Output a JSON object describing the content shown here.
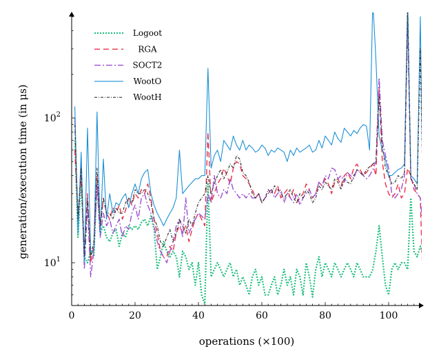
{
  "chart_data": {
    "type": "line",
    "xlabel": "operations (×100)",
    "ylabel": "generation/execution time (in μs)",
    "xlim": [
      0,
      111
    ],
    "ylim": [
      5,
      600
    ],
    "yscale": "log",
    "x_ticks": [
      {
        "value": 0,
        "label": "0"
      },
      {
        "value": 20,
        "label": "20"
      },
      {
        "value": 40,
        "label": "40"
      },
      {
        "value": 60,
        "label": "60"
      },
      {
        "value": 80,
        "label": "80"
      },
      {
        "value": 100,
        "label": "100"
      }
    ],
    "y_ticks": [
      {
        "value": 10,
        "label": "10",
        "exp": "1"
      },
      {
        "value": 100,
        "label": "10",
        "exp": "2"
      }
    ],
    "grid": false,
    "legend_position": "top-left",
    "x": [
      1,
      2,
      3,
      4,
      5,
      6,
      7,
      8,
      9,
      10,
      11,
      12,
      13,
      14,
      15,
      16,
      17,
      18,
      19,
      20,
      21,
      22,
      23,
      24,
      25,
      26,
      27,
      28,
      29,
      30,
      31,
      32,
      33,
      34,
      35,
      36,
      37,
      38,
      39,
      40,
      41,
      42,
      43,
      44,
      45,
      46,
      47,
      48,
      49,
      50,
      51,
      52,
      53,
      54,
      55,
      56,
      57,
      58,
      59,
      60,
      61,
      62,
      63,
      64,
      65,
      66,
      67,
      68,
      69,
      70,
      71,
      72,
      73,
      74,
      75,
      76,
      77,
      78,
      79,
      80,
      81,
      82,
      83,
      84,
      85,
      86,
      87,
      88,
      89,
      90,
      91,
      92,
      93,
      94,
      95,
      96,
      97,
      98,
      99,
      100,
      101,
      102,
      103,
      104,
      105,
      106,
      107,
      108,
      109,
      110,
      111
    ],
    "series": [
      {
        "name": "Logoot",
        "color": "#1fbf7f",
        "dash": "2 2",
        "width": 2.2,
        "values": [
          70,
          15,
          38,
          11,
          10,
          12,
          11,
          38,
          16,
          18,
          15,
          14,
          16,
          17,
          13,
          16,
          15,
          18,
          17,
          18,
          17,
          19,
          20,
          18,
          21,
          17,
          9,
          11,
          14,
          12,
          11,
          12,
          11,
          8,
          12,
          11,
          9,
          10,
          7,
          10,
          6,
          5.2,
          35,
          8,
          9,
          10,
          9,
          8,
          9,
          10,
          8,
          9,
          7,
          8,
          7,
          6,
          8,
          9,
          7,
          8,
          6,
          6,
          7,
          8,
          6,
          7,
          9,
          7,
          8,
          6,
          9,
          8,
          6,
          10,
          8,
          5.8,
          9,
          11,
          8,
          10,
          9,
          8,
          10,
          9,
          8,
          9,
          10,
          9,
          8,
          10,
          9,
          8,
          8,
          8,
          9,
          12,
          18,
          11,
          7,
          6,
          9,
          10,
          9,
          10,
          10,
          9,
          28,
          12,
          11,
          13,
          11
        ]
      },
      {
        "name": "RGA",
        "color": "#e8304a",
        "dash": "8 5",
        "width": 1.4,
        "values": [
          60,
          22,
          40,
          12,
          30,
          10,
          13,
          40,
          17,
          28,
          22,
          20,
          24,
          22,
          25,
          20,
          23,
          28,
          25,
          30,
          28,
          32,
          30,
          35,
          28,
          20,
          16,
          12,
          11,
          11,
          13,
          12,
          16,
          18,
          16,
          18,
          14,
          17,
          20,
          22,
          20,
          18,
          80,
          26,
          30,
          35,
          38,
          45,
          40,
          35,
          45,
          50,
          48,
          40,
          38,
          35,
          32,
          28,
          30,
          26,
          28,
          30,
          32,
          30,
          34,
          28,
          30,
          32,
          28,
          32,
          26,
          28,
          30,
          35,
          32,
          28,
          30,
          36,
          34,
          38,
          35,
          30,
          36,
          38,
          34,
          40,
          42,
          38,
          45,
          48,
          44,
          40,
          42,
          45,
          48,
          40,
          160,
          50,
          35,
          30,
          28,
          30,
          35,
          28,
          30,
          45,
          40,
          32,
          30,
          28,
          5
        ]
      },
      {
        "name": "SOCT2",
        "color": "#9b4fd0",
        "dash": "9 3 2 3",
        "width": 1.4,
        "values": [
          100,
          18,
          50,
          9,
          25,
          8,
          12,
          35,
          15,
          22,
          18,
          20,
          16,
          18,
          20,
          15,
          18,
          17,
          22,
          25,
          20,
          28,
          30,
          25,
          22,
          18,
          14,
          12,
          11,
          10,
          12,
          14,
          18,
          20,
          15,
          28,
          16,
          18,
          20,
          22,
          21,
          20,
          30,
          26,
          40,
          30,
          28,
          32,
          30,
          38,
          32,
          30,
          28,
          30,
          28,
          30,
          28,
          28,
          30,
          26,
          28,
          30,
          32,
          28,
          30,
          32,
          26,
          30,
          28,
          26,
          30,
          25,
          28,
          30,
          32,
          28,
          30,
          36,
          34,
          40,
          38,
          45,
          44,
          38,
          40,
          36,
          42,
          40,
          38,
          44,
          42,
          40,
          38,
          40,
          44,
          50,
          190,
          70,
          55,
          45,
          30,
          28,
          30,
          32,
          40,
          450,
          38,
          35,
          30,
          28,
          15
        ]
      },
      {
        "name": "WootO",
        "color": "#1a8fd6",
        "dash": "",
        "width": 1.1,
        "values": [
          120,
          16,
          58,
          10,
          85,
          12,
          12,
          110,
          16,
          52,
          20,
          30,
          22,
          26,
          25,
          28,
          30,
          24,
          30,
          35,
          30,
          38,
          42,
          44,
          30,
          25,
          22,
          20,
          18,
          20,
          22,
          24,
          28,
          60,
          30,
          32,
          34,
          36,
          38,
          38,
          40,
          40,
          220,
          45,
          55,
          60,
          50,
          70,
          65,
          60,
          75,
          65,
          60,
          70,
          60,
          65,
          62,
          58,
          60,
          65,
          62,
          55,
          60,
          58,
          62,
          60,
          58,
          50,
          60,
          55,
          62,
          58,
          60,
          62,
          65,
          58,
          60,
          70,
          62,
          75,
          70,
          65,
          80,
          72,
          68,
          85,
          80,
          75,
          82,
          78,
          85,
          90,
          88,
          60,
          650,
          250,
          75,
          60,
          52,
          40,
          40,
          42,
          44,
          45,
          48,
          650,
          40,
          38,
          35,
          500,
          13
        ]
      },
      {
        "name": "WootH",
        "color": "#333333",
        "dash": "4 2 1 2",
        "width": 1.2,
        "values": [
          90,
          20,
          45,
          11,
          28,
          11,
          14,
          45,
          18,
          28,
          22,
          22,
          20,
          24,
          22,
          22,
          26,
          28,
          26,
          32,
          30,
          30,
          32,
          30,
          26,
          20,
          18,
          14,
          13,
          15,
          17,
          14,
          16,
          20,
          18,
          16,
          20,
          18,
          22,
          26,
          28,
          30,
          40,
          30,
          35,
          40,
          44,
          38,
          42,
          48,
          45,
          55,
          52,
          42,
          40,
          36,
          30,
          28,
          30,
          26,
          28,
          32,
          30,
          34,
          32,
          30,
          28,
          30,
          32,
          28,
          26,
          30,
          28,
          32,
          30,
          26,
          28,
          34,
          32,
          36,
          34,
          32,
          38,
          36,
          32,
          38,
          36,
          35,
          40,
          44,
          42,
          40,
          44,
          46,
          48,
          50,
          140,
          65,
          45,
          40,
          35,
          36,
          40,
          38,
          42,
          600,
          38,
          35,
          32,
          300,
          14
        ]
      }
    ]
  }
}
